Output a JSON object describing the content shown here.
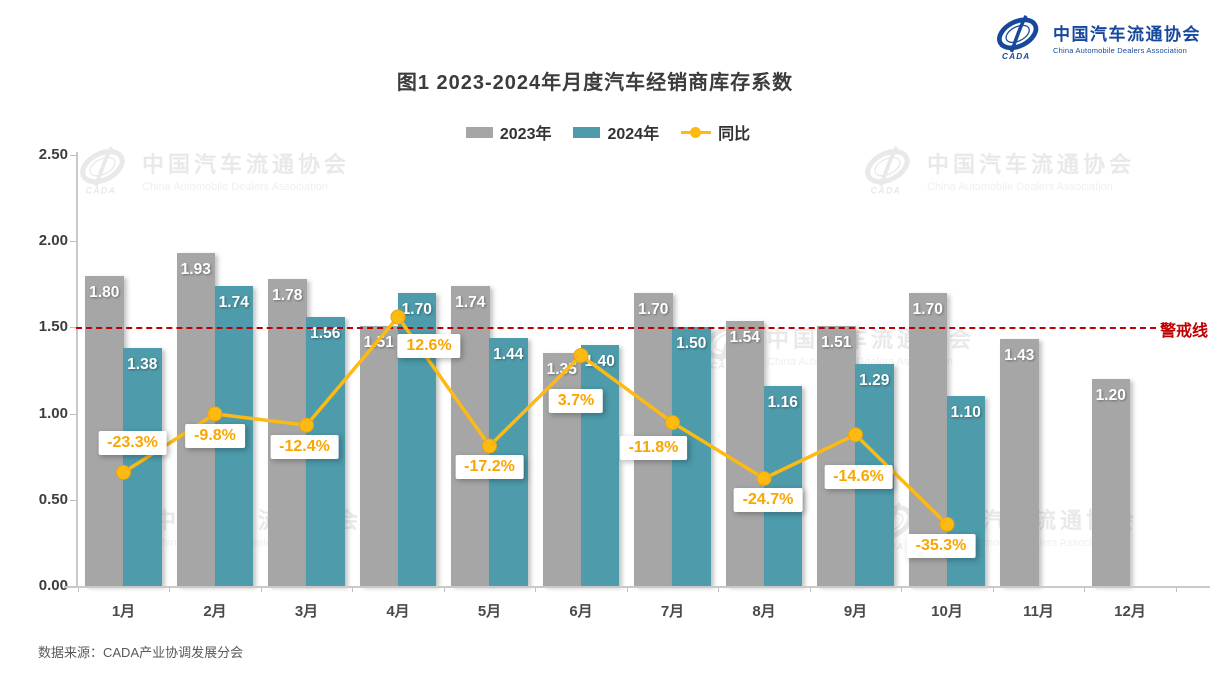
{
  "page": {
    "title": "图1  2023-2024年月度汽车经销商库存系数",
    "source": "数据来源：CADA产业协调发展分会"
  },
  "logo": {
    "cn": "中国汽车流通协会",
    "en": "China Automobile Dealers Association",
    "emblem": "CADA",
    "color": "#17489c"
  },
  "watermark": {
    "cn": "中国汽车流通协会",
    "en": "China Automobile Dealers Association"
  },
  "legend": {
    "items": [
      {
        "label": "2023年",
        "color": "#a6a6a6",
        "marker": "swatch"
      },
      {
        "label": "2024年",
        "color": "#4d9bab",
        "marker": "swatch"
      },
      {
        "label": "同比",
        "color": "#fcba12",
        "marker": "line-dot"
      }
    ]
  },
  "chart_data": {
    "type": "bar",
    "title": "图1  2023-2024年月度汽车经销商库存系数",
    "categories": [
      "1月",
      "2月",
      "3月",
      "4月",
      "5月",
      "6月",
      "7月",
      "8月",
      "9月",
      "10月",
      "11月",
      "12月"
    ],
    "series": [
      {
        "name": "2023年",
        "type": "bar",
        "color": "#a6a6a6",
        "values": [
          1.8,
          1.93,
          1.78,
          1.51,
          1.74,
          1.35,
          1.7,
          1.54,
          1.51,
          1.7,
          1.43,
          1.2
        ]
      },
      {
        "name": "2024年",
        "type": "bar",
        "color": "#4d9bab",
        "values": [
          1.38,
          1.74,
          1.56,
          1.7,
          1.44,
          1.4,
          1.5,
          1.16,
          1.29,
          1.1,
          null,
          null
        ]
      },
      {
        "name": "同比",
        "type": "line",
        "color": "#fcba12",
        "unit": "%",
        "values": [
          -23.3,
          -9.8,
          -12.4,
          12.6,
          -17.2,
          3.7,
          -11.8,
          -24.7,
          -14.6,
          -35.3,
          null,
          null
        ]
      }
    ],
    "y_axis": {
      "min": 0,
      "max": 2.5,
      "step": 0.5,
      "ticks": [
        "0.00",
        "0.50",
        "1.00",
        "1.50",
        "2.00",
        "2.50"
      ]
    },
    "secondary_axis": {
      "min": -50,
      "max": 50,
      "unit": "%",
      "visible": false
    },
    "threshold": {
      "value": 1.5,
      "label": "警戒线",
      "color": "#c00000"
    },
    "grid": false,
    "legend_position": "top"
  }
}
